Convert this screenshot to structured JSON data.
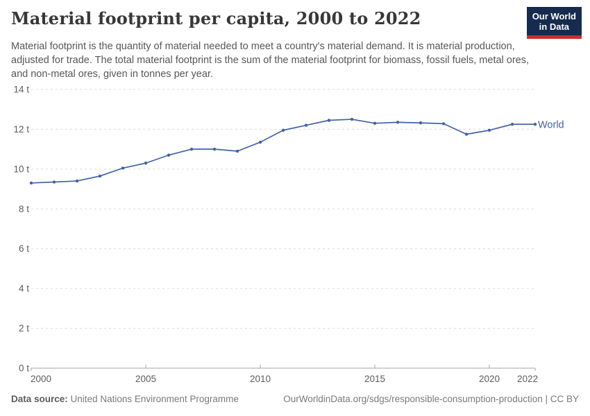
{
  "header": {
    "title": "Material footprint per capita, 2000 to 2022",
    "subtitle": "Material footprint is the quantity of material needed to meet a country's material demand. It is material production, adjusted for trade. The total material footprint is the sum of the material footprint for biomass, fossil fuels, metal ores, and non-metal ores, given in tonnes per year."
  },
  "logo": {
    "line1": "Our World",
    "line2": "in Data",
    "bg_color": "#162b4d",
    "bar_color": "#c5312f"
  },
  "chart_data": {
    "type": "line",
    "title": "Material footprint per capita, 2000 to 2022",
    "ylabel": "tonnes per year",
    "x": [
      2000,
      2001,
      2002,
      2003,
      2004,
      2005,
      2006,
      2007,
      2008,
      2009,
      2010,
      2011,
      2012,
      2013,
      2014,
      2015,
      2016,
      2017,
      2018,
      2019,
      2020,
      2021,
      2022
    ],
    "series": [
      {
        "name": "World",
        "color": "#4262a5",
        "values": [
          9.3,
          9.35,
          9.4,
          9.65,
          10.05,
          10.3,
          10.7,
          11.0,
          11.0,
          10.9,
          11.35,
          11.95,
          12.2,
          12.45,
          12.5,
          12.3,
          12.35,
          12.32,
          12.28,
          11.75,
          11.95,
          12.25,
          12.25
        ]
      }
    ],
    "ylim": [
      0,
      14
    ],
    "y_ticks": [
      {
        "value": 0,
        "label": "0 t"
      },
      {
        "value": 2,
        "label": "2 t"
      },
      {
        "value": 4,
        "label": "4 t"
      },
      {
        "value": 6,
        "label": "6 t"
      },
      {
        "value": 8,
        "label": "8 t"
      },
      {
        "value": 10,
        "label": "10 t"
      },
      {
        "value": 12,
        "label": "12 t"
      },
      {
        "value": 14,
        "label": "14 t"
      }
    ],
    "x_ticks": [
      2000,
      2005,
      2010,
      2015,
      2020,
      2022
    ],
    "grid": "horizontal-dashed",
    "legend": "end-of-line-label",
    "colors": {
      "gridline": "#dcdcdc",
      "axis": "#a3a3a3",
      "tick_label": "#5c5c5c"
    }
  },
  "footer": {
    "datasource_label": "Data source:",
    "datasource_value": "United Nations Environment Programme",
    "attribution": "OurWorldinData.org/sdgs/responsible-consumption-production | CC BY"
  }
}
